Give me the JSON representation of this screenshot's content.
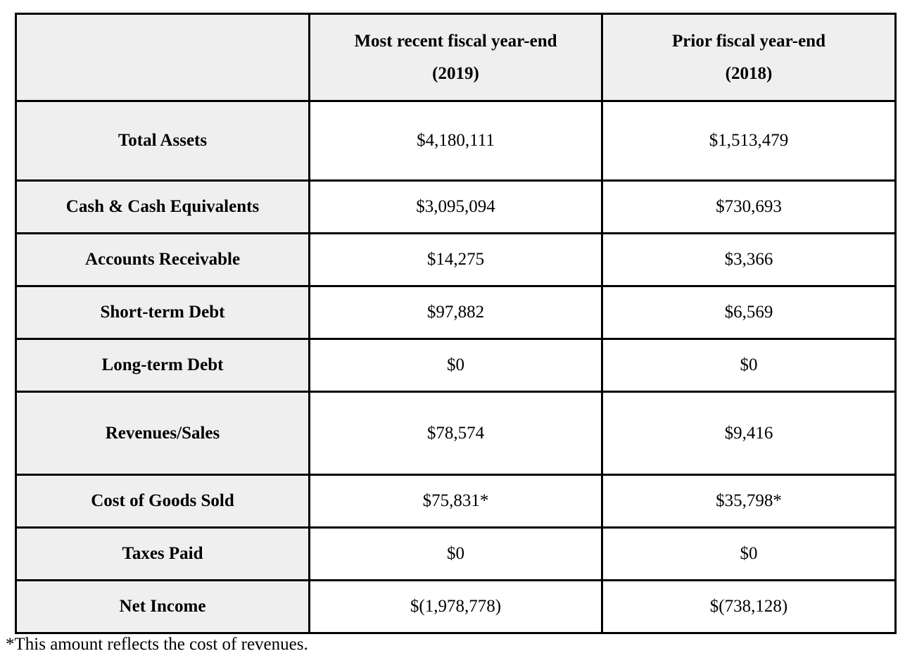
{
  "table": {
    "header": {
      "corner": "",
      "col1_line1": "Most recent fiscal year-end",
      "col1_line2": "(2019)",
      "col2_line1": "Prior fiscal year-end",
      "col2_line2": "(2018)"
    },
    "rows": [
      {
        "label": "Total Assets",
        "recent": "$4,180,111",
        "prior": "$1,513,479"
      },
      {
        "label": "Cash & Cash Equivalents",
        "recent": "$3,095,094",
        "prior": "$730,693"
      },
      {
        "label": "Accounts Receivable",
        "recent": "$14,275",
        "prior": "$3,366"
      },
      {
        "label": "Short-term Debt",
        "recent": "$97,882",
        "prior": "$6,569"
      },
      {
        "label": "Long-term Debt",
        "recent": "$0",
        "prior": "$0"
      },
      {
        "label": "Revenues/Sales",
        "recent": "$78,574",
        "prior": "$9,416"
      },
      {
        "label": "Cost of Goods Sold",
        "recent": "$75,831*",
        "prior": "$35,798*"
      },
      {
        "label": "Taxes Paid",
        "recent": "$0",
        "prior": "$0"
      },
      {
        "label": "Net Income",
        "recent": "$(1,978,778)",
        "prior": "$(738,128)"
      }
    ]
  },
  "footnote": "*This amount reflects the cost of revenues."
}
